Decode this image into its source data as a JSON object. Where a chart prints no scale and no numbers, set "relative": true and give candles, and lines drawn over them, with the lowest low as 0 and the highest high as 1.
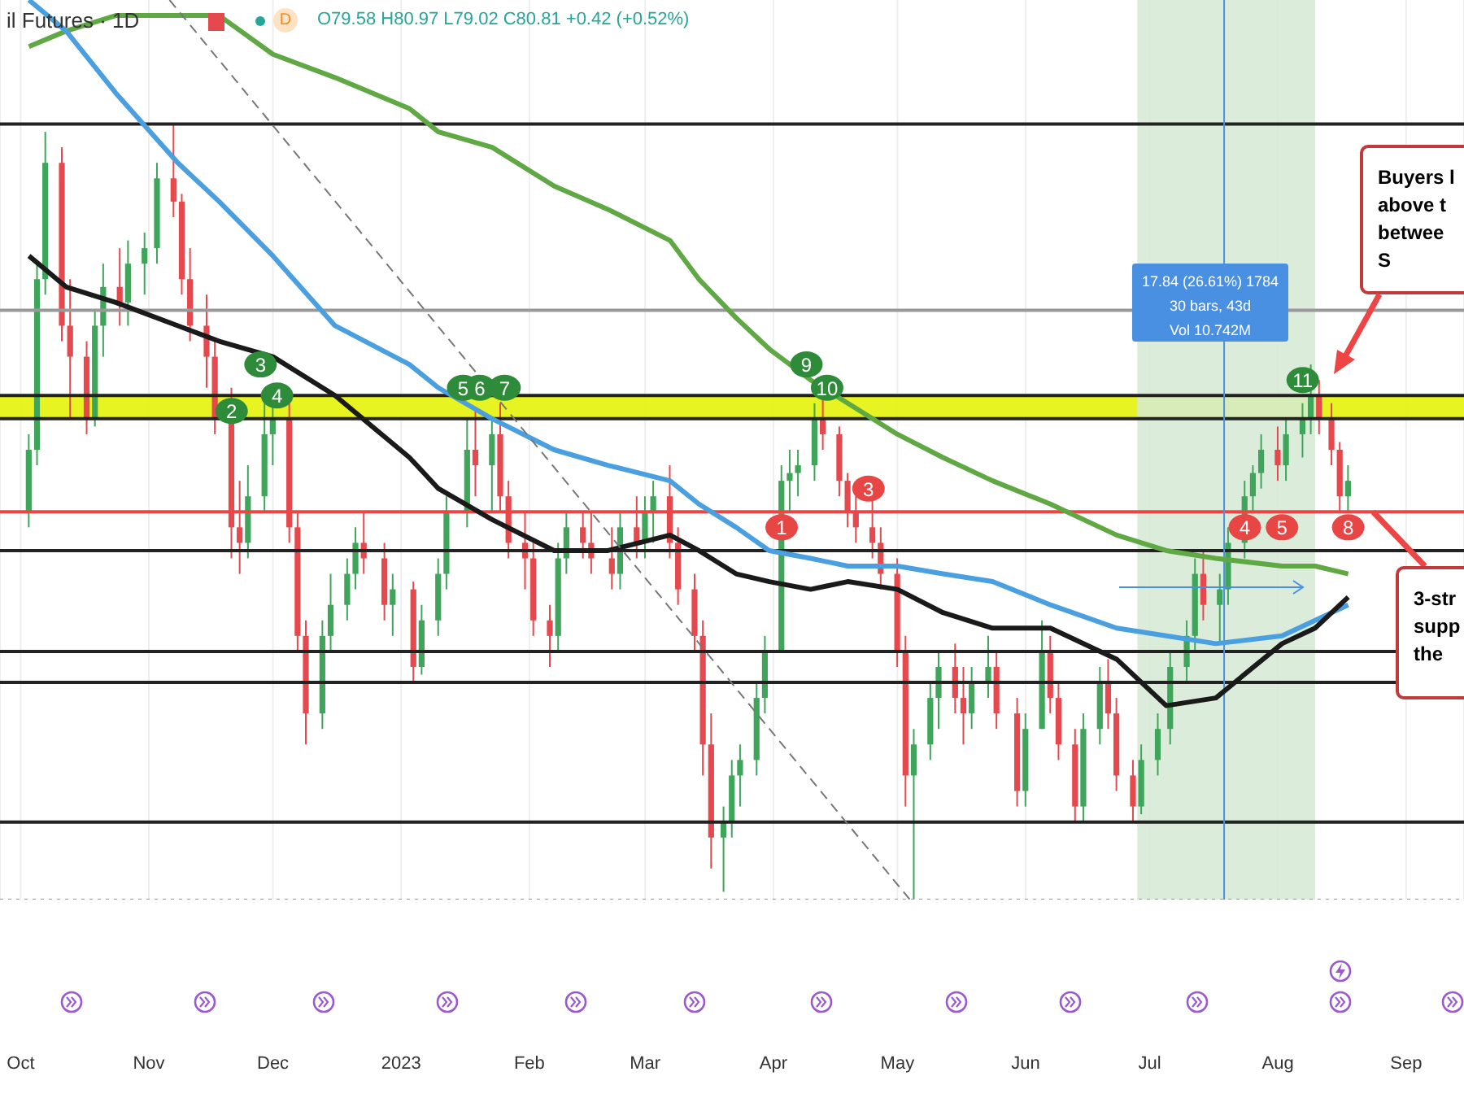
{
  "chart_data": {
    "type": "candlestick",
    "title": "il Futures · 1D",
    "subtitle": "O79.58 H80.97 L79.02 C80.81 +0.42 (+0.52%)",
    "relative": true,
    "grid": "x",
    "xlim": [
      "2022-09-26",
      "2023-09-15"
    ],
    "xticks": [
      {
        "value": "2022-10-01",
        "label": "Oct"
      },
      {
        "value": "2022-11-01",
        "label": "Nov"
      },
      {
        "value": "2022-12-01",
        "label": "Dec"
      },
      {
        "value": "2023-01-01",
        "label": "2023"
      },
      {
        "value": "2023-02-01",
        "label": "Feb"
      },
      {
        "value": "2023-03-01",
        "label": "Mar"
      },
      {
        "value": "2023-04-01",
        "label": "Apr"
      },
      {
        "value": "2023-05-01",
        "label": "May"
      },
      {
        "value": "2023-06-01",
        "label": "Jun"
      },
      {
        "value": "2023-07-01",
        "label": "Jul"
      },
      {
        "value": "2023-08-01",
        "label": "Aug"
      },
      {
        "value": "2023-09-01",
        "label": "Sep"
      }
    ],
    "tick_labels": "x",
    "annotations": [
      "D",
      "17.84 (26.61%) 1784\n30 bars, 43d\nVol 10.742M",
      "Buyers l\nabove t\nbetwee\nS",
      {
        "text": "3-str\nsupp\nthe",
        "x": "2023-08-24",
        "y": 0.5
      },
      {
        "text": "2",
        "x": "2022-11-21",
        "y": 0.63
      },
      {
        "text": "3",
        "x": "2022-11-28",
        "y": 0.69
      },
      {
        "text": "4",
        "x": "2022-12-02",
        "y": 0.65
      },
      {
        "text": "5",
        "x": "2023-01-16",
        "y": 0.66
      },
      {
        "text": "6",
        "x": "2023-01-20",
        "y": 0.66
      },
      {
        "text": "7",
        "x": "2023-01-26",
        "y": 0.66
      },
      {
        "text": "9",
        "x": "2023-04-09",
        "y": 0.69
      },
      {
        "text": "10",
        "x": "2023-04-14",
        "y": 0.66
      },
      {
        "text": "11",
        "x": "2023-08-07",
        "y": 0.67
      },
      {
        "text": "1",
        "x": "2023-04-03",
        "y": 0.48
      },
      {
        "text": "3",
        "x": "2023-04-24",
        "y": 0.53
      },
      {
        "text": "4",
        "x": "2023-07-24",
        "y": 0.48
      },
      {
        "text": "5",
        "x": "2023-08-02",
        "y": 0.48
      },
      {
        "text": "8",
        "x": "2023-08-18",
        "y": 0.48
      }
    ],
    "ref_lines": [
      {
        "axis": "y",
        "value": 1.0,
        "color": "#222222"
      },
      {
        "axis": "y",
        "value": 0.76,
        "color": "#999999"
      },
      {
        "axis": "y",
        "value": 0.65,
        "color": "#222222"
      },
      {
        "axis": "y",
        "value": 0.62,
        "color": "#222222"
      },
      {
        "axis": "y",
        "value": 0.5,
        "color": "#ee4444"
      },
      {
        "axis": "y",
        "value": 0.45,
        "color": "#222222"
      },
      {
        "axis": "y",
        "value": 0.32,
        "color": "#222222"
      },
      {
        "axis": "y",
        "value": 0.28,
        "color": "#222222"
      },
      {
        "axis": "y",
        "value": 0.1,
        "color": "#222222"
      },
      {
        "axis": "y",
        "value": 0.0,
        "color": "#999999",
        "line_style": "dotted"
      },
      {
        "axis": "x",
        "value": "2023-07-19",
        "color": "#4a90e2"
      }
    ],
    "bands": [
      {
        "axis": "y",
        "from": 0.62,
        "to": 0.65,
        "color": "#e6f20a"
      },
      {
        "axis": "x",
        "from": "2023-06-28",
        "to": "2023-08-10",
        "color": "#d5ead3"
      }
    ],
    "series": [
      {
        "type": "candlestick",
        "x": [
          "2022-10-03",
          "2022-10-05",
          "2022-10-07",
          "2022-10-11",
          "2022-10-13",
          "2022-10-17",
          "2022-10-19",
          "2022-10-21",
          "2022-10-25",
          "2022-10-27",
          "2022-10-31",
          "2022-11-03",
          "2022-11-07",
          "2022-11-09",
          "2022-11-11",
          "2022-11-15",
          "2022-11-17",
          "2022-11-21",
          "2022-11-23",
          "2022-11-25",
          "2022-11-29",
          "2022-12-01",
          "2022-12-05",
          "2022-12-07",
          "2022-12-09",
          "2022-12-13",
          "2022-12-15",
          "2022-12-19",
          "2022-12-21",
          "2022-12-23",
          "2022-12-28",
          "2022-12-30",
          "2023-01-04",
          "2023-01-06",
          "2023-01-10",
          "2023-01-12",
          "2023-01-17",
          "2023-01-19",
          "2023-01-23",
          "2023-01-25",
          "2023-01-27",
          "2023-01-31",
          "2023-02-02",
          "2023-02-06",
          "2023-02-08",
          "2023-02-10",
          "2023-02-14",
          "2023-02-16",
          "2023-02-21",
          "2023-02-23",
          "2023-02-27",
          "2023-03-01",
          "2023-03-03",
          "2023-03-07",
          "2023-03-09",
          "2023-03-13",
          "2023-03-15",
          "2023-03-17",
          "2023-03-20",
          "2023-03-22",
          "2023-03-24",
          "2023-03-28",
          "2023-03-30",
          "2023-04-03",
          "2023-04-05",
          "2023-04-07",
          "2023-04-11",
          "2023-04-13",
          "2023-04-17",
          "2023-04-19",
          "2023-04-21",
          "2023-04-25",
          "2023-04-27",
          "2023-05-01",
          "2023-05-03",
          "2023-05-05",
          "2023-05-09",
          "2023-05-11",
          "2023-05-15",
          "2023-05-17",
          "2023-05-19",
          "2023-05-23",
          "2023-05-25",
          "2023-05-30",
          "2023-06-01",
          "2023-06-05",
          "2023-06-07",
          "2023-06-09",
          "2023-06-13",
          "2023-06-15",
          "2023-06-19",
          "2023-06-21",
          "2023-06-23",
          "2023-06-27",
          "2023-06-29",
          "2023-07-03",
          "2023-07-06",
          "2023-07-10",
          "2023-07-12",
          "2023-07-14",
          "2023-07-18",
          "2023-07-20",
          "2023-07-24",
          "2023-07-26",
          "2023-07-28",
          "2023-08-01",
          "2023-08-03",
          "2023-08-07",
          "2023-08-09",
          "2023-08-11",
          "2023-08-14",
          "2023-08-16",
          "2023-08-18"
        ],
        "ohlc": [
          [
            0.5,
            0.6,
            0.48,
            0.58
          ],
          [
            0.58,
            0.82,
            0.56,
            0.8
          ],
          [
            0.8,
            0.99,
            0.78,
            0.95
          ],
          [
            0.95,
            0.97,
            0.72,
            0.74
          ],
          [
            0.74,
            0.8,
            0.62,
            0.7
          ],
          [
            0.7,
            0.72,
            0.6,
            0.62
          ],
          [
            0.62,
            0.76,
            0.61,
            0.74
          ],
          [
            0.74,
            0.82,
            0.7,
            0.79
          ],
          [
            0.79,
            0.84,
            0.74,
            0.77
          ],
          [
            0.77,
            0.85,
            0.74,
            0.82
          ],
          [
            0.82,
            0.86,
            0.78,
            0.84
          ],
          [
            0.84,
            0.95,
            0.82,
            0.93
          ],
          [
            0.93,
            1.0,
            0.88,
            0.9
          ],
          [
            0.9,
            0.91,
            0.78,
            0.8
          ],
          [
            0.8,
            0.84,
            0.72,
            0.74
          ],
          [
            0.74,
            0.78,
            0.66,
            0.7
          ],
          [
            0.7,
            0.72,
            0.6,
            0.62
          ],
          [
            0.62,
            0.66,
            0.44,
            0.48
          ],
          [
            0.48,
            0.54,
            0.42,
            0.46
          ],
          [
            0.46,
            0.56,
            0.44,
            0.52
          ],
          [
            0.52,
            0.64,
            0.5,
            0.6
          ],
          [
            0.6,
            0.65,
            0.56,
            0.62
          ],
          [
            0.62,
            0.64,
            0.46,
            0.48
          ],
          [
            0.48,
            0.5,
            0.32,
            0.34
          ],
          [
            0.34,
            0.36,
            0.2,
            0.24
          ],
          [
            0.24,
            0.36,
            0.22,
            0.34
          ],
          [
            0.34,
            0.42,
            0.32,
            0.38
          ],
          [
            0.38,
            0.44,
            0.36,
            0.42
          ],
          [
            0.42,
            0.48,
            0.4,
            0.46
          ],
          [
            0.46,
            0.5,
            0.42,
            0.44
          ],
          [
            0.44,
            0.46,
            0.36,
            0.38
          ],
          [
            0.38,
            0.42,
            0.34,
            0.4
          ],
          [
            0.4,
            0.41,
            0.28,
            0.3
          ],
          [
            0.3,
            0.38,
            0.29,
            0.36
          ],
          [
            0.36,
            0.44,
            0.34,
            0.42
          ],
          [
            0.42,
            0.52,
            0.4,
            0.5
          ],
          [
            0.5,
            0.62,
            0.48,
            0.58
          ],
          [
            0.58,
            0.63,
            0.52,
            0.56
          ],
          [
            0.56,
            0.62,
            0.5,
            0.6
          ],
          [
            0.6,
            0.64,
            0.5,
            0.52
          ],
          [
            0.52,
            0.54,
            0.44,
            0.46
          ],
          [
            0.46,
            0.5,
            0.4,
            0.44
          ],
          [
            0.44,
            0.46,
            0.34,
            0.36
          ],
          [
            0.36,
            0.38,
            0.3,
            0.34
          ],
          [
            0.34,
            0.46,
            0.32,
            0.44
          ],
          [
            0.44,
            0.5,
            0.42,
            0.48
          ],
          [
            0.48,
            0.5,
            0.44,
            0.46
          ],
          [
            0.46,
            0.5,
            0.42,
            0.44
          ],
          [
            0.44,
            0.48,
            0.4,
            0.42
          ],
          [
            0.42,
            0.5,
            0.4,
            0.48
          ],
          [
            0.48,
            0.52,
            0.44,
            0.46
          ],
          [
            0.46,
            0.52,
            0.44,
            0.5
          ],
          [
            0.5,
            0.54,
            0.46,
            0.52
          ],
          [
            0.52,
            0.56,
            0.44,
            0.46
          ],
          [
            0.46,
            0.48,
            0.38,
            0.4
          ],
          [
            0.4,
            0.42,
            0.32,
            0.34
          ],
          [
            0.34,
            0.36,
            0.16,
            0.2
          ],
          [
            0.2,
            0.24,
            0.04,
            0.08
          ],
          [
            0.08,
            0.12,
            0.01,
            0.1
          ],
          [
            0.1,
            0.18,
            0.08,
            0.16
          ],
          [
            0.16,
            0.2,
            0.12,
            0.18
          ],
          [
            0.18,
            0.28,
            0.16,
            0.26
          ],
          [
            0.26,
            0.34,
            0.24,
            0.32
          ],
          [
            0.32,
            0.56,
            0.32,
            0.54
          ],
          [
            0.54,
            0.58,
            0.5,
            0.55
          ],
          [
            0.55,
            0.58,
            0.52,
            0.56
          ],
          [
            0.56,
            0.64,
            0.54,
            0.62
          ],
          [
            0.62,
            0.65,
            0.58,
            0.6
          ],
          [
            0.6,
            0.61,
            0.52,
            0.54
          ],
          [
            0.54,
            0.55,
            0.48,
            0.5
          ],
          [
            0.5,
            0.52,
            0.46,
            0.48
          ],
          [
            0.48,
            0.52,
            0.44,
            0.46
          ],
          [
            0.46,
            0.48,
            0.4,
            0.42
          ],
          [
            0.42,
            0.44,
            0.3,
            0.32
          ],
          [
            0.32,
            0.34,
            0.12,
            0.16
          ],
          [
            0.16,
            0.22,
            0.0,
            0.2
          ],
          [
            0.2,
            0.28,
            0.18,
            0.26
          ],
          [
            0.26,
            0.32,
            0.22,
            0.3
          ],
          [
            0.3,
            0.33,
            0.24,
            0.26
          ],
          [
            0.26,
            0.3,
            0.2,
            0.24
          ],
          [
            0.24,
            0.3,
            0.22,
            0.28
          ],
          [
            0.28,
            0.34,
            0.26,
            0.3
          ],
          [
            0.3,
            0.32,
            0.22,
            0.24
          ],
          [
            0.24,
            0.26,
            0.12,
            0.14
          ],
          [
            0.14,
            0.24,
            0.12,
            0.22
          ],
          [
            0.22,
            0.36,
            0.22,
            0.32
          ],
          [
            0.32,
            0.34,
            0.24,
            0.26
          ],
          [
            0.26,
            0.28,
            0.18,
            0.2
          ],
          [
            0.2,
            0.22,
            0.1,
            0.12
          ],
          [
            0.12,
            0.24,
            0.1,
            0.22
          ],
          [
            0.22,
            0.3,
            0.2,
            0.28
          ],
          [
            0.28,
            0.31,
            0.22,
            0.24
          ],
          [
            0.24,
            0.26,
            0.14,
            0.16
          ],
          [
            0.16,
            0.18,
            0.1,
            0.12
          ],
          [
            0.12,
            0.2,
            0.11,
            0.18
          ],
          [
            0.18,
            0.24,
            0.16,
            0.22
          ],
          [
            0.22,
            0.32,
            0.2,
            0.3
          ],
          [
            0.3,
            0.36,
            0.28,
            0.34
          ],
          [
            0.34,
            0.44,
            0.32,
            0.42
          ],
          [
            0.42,
            0.45,
            0.36,
            0.38
          ],
          [
            0.38,
            0.42,
            0.33,
            0.4
          ],
          [
            0.4,
            0.48,
            0.38,
            0.46
          ],
          [
            0.46,
            0.54,
            0.44,
            0.52
          ],
          [
            0.52,
            0.56,
            0.5,
            0.55
          ],
          [
            0.55,
            0.6,
            0.53,
            0.58
          ],
          [
            0.58,
            0.61,
            0.54,
            0.56
          ],
          [
            0.56,
            0.62,
            0.54,
            0.6
          ],
          [
            0.6,
            0.64,
            0.57,
            0.62
          ],
          [
            0.62,
            0.69,
            0.6,
            0.65
          ],
          [
            0.65,
            0.67,
            0.6,
            0.62
          ],
          [
            0.62,
            0.64,
            0.56,
            0.58
          ],
          [
            0.58,
            0.59,
            0.5,
            0.52
          ],
          [
            0.52,
            0.56,
            0.5,
            0.54
          ]
        ],
        "colors": [
          "#3ea55a",
          "#3ea55a",
          "#3ea55a",
          "#e5484d",
          "#e5484d",
          "#e5484d",
          "#3ea55a",
          "#3ea55a",
          "#e5484d",
          "#3ea55a",
          "#3ea55a",
          "#3ea55a",
          "#e5484d",
          "#e5484d",
          "#e5484d",
          "#e5484d",
          "#e5484d",
          "#e5484d",
          "#e5484d",
          "#3ea55a",
          "#3ea55a",
          "#3ea55a",
          "#e5484d",
          "#e5484d",
          "#e5484d",
          "#3ea55a",
          "#3ea55a",
          "#3ea55a",
          "#3ea55a",
          "#e5484d",
          "#e5484d",
          "#3ea55a",
          "#e5484d",
          "#3ea55a",
          "#3ea55a",
          "#3ea55a",
          "#3ea55a",
          "#e5484d",
          "#3ea55a",
          "#e5484d",
          "#e5484d",
          "#e5484d",
          "#e5484d",
          "#e5484d",
          "#3ea55a",
          "#3ea55a",
          "#e5484d",
          "#e5484d",
          "#e5484d",
          "#3ea55a",
          "#e5484d",
          "#3ea55a",
          "#3ea55a",
          "#e5484d",
          "#e5484d",
          "#e5484d",
          "#e5484d",
          "#e5484d",
          "#3ea55a",
          "#3ea55a",
          "#3ea55a",
          "#3ea55a",
          "#3ea55a",
          "#3ea55a",
          "#3ea55a",
          "#3ea55a",
          "#3ea55a",
          "#e5484d",
          "#e5484d",
          "#e5484d",
          "#e5484d",
          "#e5484d",
          "#e5484d",
          "#e5484d",
          "#e5484d",
          "#3ea55a",
          "#3ea55a",
          "#3ea55a",
          "#e5484d",
          "#e5484d",
          "#3ea55a",
          "#3ea55a",
          "#e5484d",
          "#e5484d",
          "#3ea55a",
          "#3ea55a",
          "#e5484d",
          "#e5484d",
          "#e5484d",
          "#3ea55a",
          "#3ea55a",
          "#e5484d",
          "#e5484d",
          "#e5484d",
          "#3ea55a",
          "#3ea55a",
          "#3ea55a",
          "#3ea55a",
          "#3ea55a",
          "#e5484d",
          "#3ea55a",
          "#3ea55a",
          "#3ea55a",
          "#3ea55a",
          "#3ea55a",
          "#e5484d",
          "#3ea55a",
          "#3ea55a",
          "#3ea55a",
          "#e5484d",
          "#e5484d",
          "#e5484d",
          "#3ea55a"
        ]
      },
      {
        "type": "line",
        "color": "#5fa843",
        "x": [
          "2022-10-03",
          "2022-10-12",
          "2022-10-24",
          "2022-11-08",
          "2022-11-18",
          "2022-12-01",
          "2022-12-16",
          "2023-01-03",
          "2023-01-10",
          "2023-01-23",
          "2023-02-07",
          "2023-02-20",
          "2023-03-07",
          "2023-03-14",
          "2023-03-23",
          "2023-03-31",
          "2023-04-10",
          "2023-04-19",
          "2023-05-01",
          "2023-05-12",
          "2023-05-24",
          "2023-06-07",
          "2023-06-23",
          "2023-07-05",
          "2023-07-17",
          "2023-08-02",
          "2023-08-10",
          "2023-08-18"
        ],
        "values": [
          1.1,
          1.12,
          1.14,
          1.14,
          1.14,
          1.09,
          1.06,
          1.02,
          0.99,
          0.97,
          0.92,
          0.89,
          0.85,
          0.8,
          0.75,
          0.71,
          0.67,
          0.64,
          0.6,
          0.57,
          0.54,
          0.51,
          0.47,
          0.45,
          0.44,
          0.43,
          0.43,
          0.42
        ]
      },
      {
        "type": "line",
        "color": "#4a9fe0",
        "x": [
          "2022-10-03",
          "2022-10-12",
          "2022-10-24",
          "2022-11-08",
          "2022-11-18",
          "2022-12-01",
          "2022-12-16",
          "2023-01-03",
          "2023-01-10",
          "2023-01-23",
          "2023-02-07",
          "2023-02-20",
          "2023-03-07",
          "2023-03-14",
          "2023-03-23",
          "2023-03-31",
          "2023-04-10",
          "2023-04-19",
          "2023-05-01",
          "2023-05-12",
          "2023-05-24",
          "2023-06-07",
          "2023-06-23",
          "2023-07-05",
          "2023-07-17",
          "2023-08-02",
          "2023-08-10",
          "2023-08-18"
        ],
        "values": [
          1.16,
          1.12,
          1.04,
          0.95,
          0.9,
          0.83,
          0.74,
          0.69,
          0.66,
          0.62,
          0.58,
          0.56,
          0.54,
          0.51,
          0.48,
          0.45,
          0.44,
          0.43,
          0.43,
          0.42,
          0.41,
          0.38,
          0.35,
          0.34,
          0.33,
          0.34,
          0.36,
          0.38
        ]
      },
      {
        "type": "line",
        "color": "#1a1a1a",
        "x": [
          "2022-10-03",
          "2022-10-12",
          "2022-10-24",
          "2022-11-08",
          "2022-11-18",
          "2022-12-01",
          "2022-12-16",
          "2023-01-03",
          "2023-01-10",
          "2023-01-23",
          "2023-02-07",
          "2023-02-20",
          "2023-03-07",
          "2023-03-14",
          "2023-03-23",
          "2023-03-31",
          "2023-04-10",
          "2023-04-19",
          "2023-05-01",
          "2023-05-12",
          "2023-05-24",
          "2023-06-07",
          "2023-06-23",
          "2023-07-05",
          "2023-07-17",
          "2023-08-02",
          "2023-08-10",
          "2023-08-18"
        ],
        "values": [
          0.83,
          0.79,
          0.77,
          0.74,
          0.72,
          0.7,
          0.65,
          0.57,
          0.53,
          0.49,
          0.45,
          0.45,
          0.47,
          0.45,
          0.42,
          0.41,
          0.4,
          0.41,
          0.4,
          0.37,
          0.35,
          0.35,
          0.31,
          0.25,
          0.26,
          0.33,
          0.35,
          0.39
        ]
      },
      {
        "type": "line",
        "color": "#777777",
        "line_style": "dashed",
        "x": [
          "2022-11-06",
          "2023-05-04"
        ],
        "values": [
          1.16,
          0.0
        ]
      },
      {
        "type": "scatter",
        "marker": "circle",
        "color": "#2e8b3a",
        "x": [
          "2022-11-21",
          "2022-11-28",
          "2022-12-02",
          "2023-01-16",
          "2023-01-20",
          "2023-01-26",
          "2023-04-09",
          "2023-04-14",
          "2023-08-07"
        ],
        "values": [
          0.63,
          0.69,
          0.65,
          0.66,
          0.66,
          0.66,
          0.69,
          0.66,
          0.67
        ]
      },
      {
        "type": "scatter",
        "marker": "circle",
        "color": "#e84545",
        "x": [
          "2023-04-03",
          "2023-04-24",
          "2023-07-24",
          "2023-08-02",
          "2023-08-18"
        ],
        "values": [
          0.48,
          0.53,
          0.48,
          0.48,
          0.48
        ]
      }
    ]
  }
}
